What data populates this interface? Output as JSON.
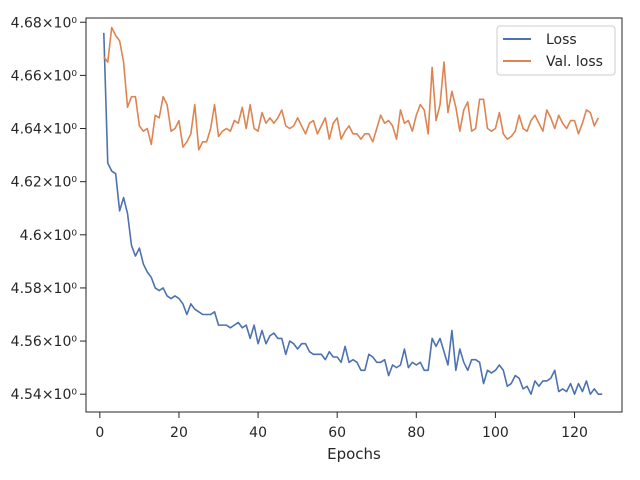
{
  "chart_data": {
    "type": "line",
    "title": "",
    "xlabel": "Epochs",
    "ylabel": "",
    "xlim": [
      -3.5,
      132
    ],
    "ylim": [
      4.5333,
      4.6816
    ],
    "xticks": [
      0,
      20,
      40,
      60,
      80,
      100,
      120
    ],
    "yticks": [
      4.54,
      4.56,
      4.58,
      4.6,
      4.62,
      4.64,
      4.66,
      4.68
    ],
    "ytick_labels": [
      "4.54×10⁰",
      "4.56×10⁰",
      "4.58×10⁰",
      "4.6×10⁰",
      "4.62×10⁰",
      "4.64×10⁰",
      "4.66×10⁰",
      "4.68×10⁰"
    ],
    "grid": false,
    "legend_position": "top-right",
    "x_start": 1,
    "series": [
      {
        "name": "Loss",
        "color": "#4c72b0",
        "values": [
          4.676,
          4.627,
          4.624,
          4.623,
          4.609,
          4.614,
          4.608,
          4.596,
          4.592,
          4.595,
          4.589,
          4.586,
          4.584,
          4.58,
          4.579,
          4.58,
          4.577,
          4.576,
          4.577,
          4.576,
          4.574,
          4.57,
          4.574,
          4.572,
          4.571,
          4.57,
          4.57,
          4.57,
          4.571,
          4.566,
          4.566,
          4.566,
          4.565,
          4.566,
          4.567,
          4.565,
          4.566,
          4.561,
          4.566,
          4.559,
          4.564,
          4.559,
          4.562,
          4.563,
          4.561,
          4.561,
          4.555,
          4.56,
          4.559,
          4.557,
          4.559,
          4.559,
          4.556,
          4.555,
          4.555,
          4.555,
          4.553,
          4.556,
          4.554,
          4.554,
          4.552,
          4.558,
          4.552,
          4.553,
          4.552,
          4.549,
          4.549,
          4.555,
          4.554,
          4.552,
          4.552,
          4.553,
          4.547,
          4.551,
          4.55,
          4.551,
          4.557,
          4.55,
          4.552,
          4.551,
          4.552,
          4.549,
          4.549,
          4.561,
          4.558,
          4.561,
          4.556,
          4.551,
          4.564,
          4.549,
          4.557,
          4.552,
          4.549,
          4.553,
          4.553,
          4.552,
          4.544,
          4.549,
          4.548,
          4.549,
          4.551,
          4.549,
          4.543,
          4.544,
          4.547,
          4.546,
          4.542,
          4.543,
          4.54,
          4.545,
          4.543,
          4.545,
          4.545,
          4.546,
          4.549,
          4.541,
          4.542,
          4.541,
          4.544,
          4.54,
          4.544,
          4.541,
          4.545,
          4.54,
          4.542,
          4.54,
          4.54
        ]
      },
      {
        "name": "Val. loss",
        "color": "#dd8452",
        "values": [
          4.667,
          4.665,
          4.678,
          4.675,
          4.673,
          4.665,
          4.648,
          4.652,
          4.652,
          4.641,
          4.639,
          4.64,
          4.634,
          4.645,
          4.644,
          4.652,
          4.649,
          4.639,
          4.64,
          4.643,
          4.633,
          4.635,
          4.638,
          4.649,
          4.632,
          4.635,
          4.635,
          4.64,
          4.649,
          4.637,
          4.639,
          4.64,
          4.639,
          4.643,
          4.642,
          4.648,
          4.64,
          4.649,
          4.64,
          4.639,
          4.646,
          4.642,
          4.644,
          4.642,
          4.644,
          4.647,
          4.641,
          4.64,
          4.641,
          4.644,
          4.641,
          4.638,
          4.642,
          4.643,
          4.638,
          4.641,
          4.644,
          4.636,
          4.642,
          4.644,
          4.636,
          4.639,
          4.641,
          4.638,
          4.638,
          4.636,
          4.638,
          4.638,
          4.635,
          4.64,
          4.645,
          4.642,
          4.643,
          4.641,
          4.636,
          4.647,
          4.642,
          4.643,
          4.639,
          4.645,
          4.649,
          4.647,
          4.638,
          4.663,
          4.643,
          4.649,
          4.665,
          4.646,
          4.654,
          4.648,
          4.639,
          4.647,
          4.65,
          4.639,
          4.64,
          4.651,
          4.651,
          4.64,
          4.639,
          4.64,
          4.646,
          4.638,
          4.636,
          4.637,
          4.639,
          4.645,
          4.64,
          4.639,
          4.643,
          4.645,
          4.642,
          4.639,
          4.647,
          4.644,
          4.64,
          4.645,
          4.642,
          4.64,
          4.643,
          4.643,
          4.638,
          4.642,
          4.647,
          4.646,
          4.641,
          4.644
        ]
      }
    ]
  }
}
